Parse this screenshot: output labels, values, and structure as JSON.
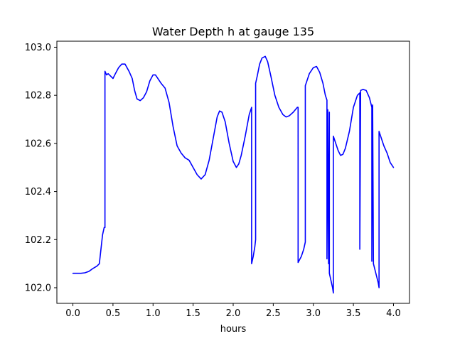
{
  "chart_data": {
    "type": "line",
    "title": "Water Depth h at gauge 135",
    "xlabel": "hours",
    "ylabel": "",
    "xlim": [
      -0.2,
      4.2
    ],
    "ylim": [
      101.935,
      103.025
    ],
    "x_ticks": [
      0.0,
      0.5,
      1.0,
      1.5,
      2.0,
      2.5,
      3.0,
      3.5,
      4.0
    ],
    "x_tick_labels": [
      "0.0",
      "0.5",
      "1.0",
      "1.5",
      "2.0",
      "2.5",
      "3.0",
      "3.5",
      "4.0"
    ],
    "y_ticks": [
      102.0,
      102.2,
      102.4,
      102.6,
      102.8,
      103.0
    ],
    "y_tick_labels": [
      "102.0",
      "102.2",
      "102.4",
      "102.6",
      "102.8",
      "103.0"
    ],
    "grid": false,
    "legend": "none",
    "series": [
      {
        "color": "#0000ff",
        "points": [
          [
            0.0,
            102.06
          ],
          [
            0.1,
            102.06
          ],
          [
            0.15,
            102.062
          ],
          [
            0.2,
            102.068
          ],
          [
            0.25,
            102.08
          ],
          [
            0.3,
            102.09
          ],
          [
            0.33,
            102.1
          ],
          [
            0.35,
            102.16
          ],
          [
            0.37,
            102.22
          ],
          [
            0.39,
            102.25
          ],
          [
            0.4,
            102.25
          ],
          [
            0.4,
            102.9
          ],
          [
            0.42,
            102.885
          ],
          [
            0.44,
            102.89
          ],
          [
            0.47,
            102.88
          ],
          [
            0.5,
            102.87
          ],
          [
            0.53,
            102.89
          ],
          [
            0.57,
            102.915
          ],
          [
            0.61,
            102.93
          ],
          [
            0.65,
            102.93
          ],
          [
            0.7,
            102.9
          ],
          [
            0.74,
            102.87
          ],
          [
            0.77,
            102.82
          ],
          [
            0.8,
            102.785
          ],
          [
            0.84,
            102.778
          ],
          [
            0.88,
            102.79
          ],
          [
            0.92,
            102.815
          ],
          [
            0.96,
            102.86
          ],
          [
            1.0,
            102.885
          ],
          [
            1.03,
            102.885
          ],
          [
            1.06,
            102.87
          ],
          [
            1.1,
            102.85
          ],
          [
            1.15,
            102.83
          ],
          [
            1.2,
            102.77
          ],
          [
            1.25,
            102.67
          ],
          [
            1.3,
            102.59
          ],
          [
            1.35,
            102.56
          ],
          [
            1.4,
            102.54
          ],
          [
            1.45,
            102.53
          ],
          [
            1.5,
            102.5
          ],
          [
            1.55,
            102.47
          ],
          [
            1.6,
            102.452
          ],
          [
            1.65,
            102.47
          ],
          [
            1.7,
            102.53
          ],
          [
            1.75,
            102.62
          ],
          [
            1.8,
            102.71
          ],
          [
            1.83,
            102.735
          ],
          [
            1.86,
            102.73
          ],
          [
            1.9,
            102.69
          ],
          [
            1.95,
            102.6
          ],
          [
            2.0,
            102.525
          ],
          [
            2.04,
            102.5
          ],
          [
            2.07,
            102.515
          ],
          [
            2.1,
            102.55
          ],
          [
            2.15,
            102.63
          ],
          [
            2.2,
            102.72
          ],
          [
            2.23,
            102.75
          ],
          [
            2.23,
            102.1
          ],
          [
            2.25,
            102.13
          ],
          [
            2.27,
            102.17
          ],
          [
            2.28,
            102.2
          ],
          [
            2.28,
            102.85
          ],
          [
            2.3,
            102.88
          ],
          [
            2.33,
            102.93
          ],
          [
            2.36,
            102.955
          ],
          [
            2.4,
            102.962
          ],
          [
            2.43,
            102.94
          ],
          [
            2.47,
            102.88
          ],
          [
            2.52,
            102.8
          ],
          [
            2.57,
            102.75
          ],
          [
            2.62,
            102.72
          ],
          [
            2.66,
            102.71
          ],
          [
            2.7,
            102.715
          ],
          [
            2.75,
            102.73
          ],
          [
            2.8,
            102.75
          ],
          [
            2.81,
            102.75
          ],
          [
            2.81,
            102.105
          ],
          [
            2.85,
            102.13
          ],
          [
            2.88,
            102.16
          ],
          [
            2.9,
            102.19
          ],
          [
            2.9,
            102.84
          ],
          [
            2.95,
            102.89
          ],
          [
            3.0,
            102.915
          ],
          [
            3.04,
            102.92
          ],
          [
            3.08,
            102.895
          ],
          [
            3.12,
            102.85
          ],
          [
            3.15,
            102.8
          ],
          [
            3.17,
            102.78
          ],
          [
            3.17,
            102.12
          ],
          [
            3.18,
            102.74
          ],
          [
            3.19,
            102.1
          ],
          [
            3.2,
            102.73
          ],
          [
            3.2,
            102.06
          ],
          [
            3.22,
            102.03
          ],
          [
            3.24,
            102.0
          ],
          [
            3.25,
            101.978
          ],
          [
            3.25,
            102.63
          ],
          [
            3.28,
            102.6
          ],
          [
            3.31,
            102.57
          ],
          [
            3.34,
            102.55
          ],
          [
            3.37,
            102.555
          ],
          [
            3.4,
            102.58
          ],
          [
            3.45,
            102.65
          ],
          [
            3.5,
            102.75
          ],
          [
            3.55,
            102.8
          ],
          [
            3.58,
            102.81
          ],
          [
            3.58,
            102.16
          ],
          [
            3.59,
            102.82
          ],
          [
            3.62,
            102.825
          ],
          [
            3.66,
            102.82
          ],
          [
            3.7,
            102.79
          ],
          [
            3.73,
            102.75
          ],
          [
            3.73,
            102.11
          ],
          [
            3.74,
            102.76
          ],
          [
            3.75,
            102.1
          ],
          [
            3.78,
            102.06
          ],
          [
            3.81,
            102.02
          ],
          [
            3.82,
            102.0
          ],
          [
            3.82,
            102.65
          ],
          [
            3.85,
            102.62
          ],
          [
            3.88,
            102.59
          ],
          [
            3.92,
            102.56
          ],
          [
            3.96,
            102.52
          ],
          [
            4.0,
            102.5
          ]
        ]
      }
    ]
  }
}
